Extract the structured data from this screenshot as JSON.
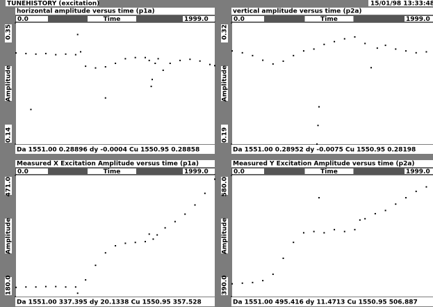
{
  "header": {
    "title": "TUNEHISTORY (excitation)",
    "timestamp": "15/01/98 13:33:48"
  },
  "chart_data": [
    {
      "type": "scatter",
      "title": "horizontal amplitude versus time (p1a)",
      "xlabel": "Time",
      "ylabel": "Amplitude",
      "xlim": [
        0,
        1999
      ],
      "xticks": [
        {
          "value": 0,
          "label": "0.0"
        },
        {
          "value": 1999,
          "label": "1999.0"
        }
      ],
      "ylim": [
        0.14,
        0.35
      ],
      "yticks": [
        0.35,
        0.14
      ],
      "color": "#000000",
      "status": "Da 1551.00 0.28896 dy -0.0004 Cu 1550.95 0.28858",
      "x": [
        0,
        100,
        200,
        300,
        400,
        500,
        600,
        620,
        650,
        700,
        800,
        900,
        1000,
        1100,
        1200,
        1300,
        1340,
        1370,
        1400,
        1430,
        1480,
        1550,
        1650,
        1750,
        1850,
        1950,
        1999,
        150,
        900,
        1360
      ],
      "y": [
        0.298,
        0.297,
        0.296,
        0.297,
        0.295,
        0.296,
        0.295,
        0.33,
        0.3,
        0.275,
        0.272,
        0.274,
        0.28,
        0.288,
        0.29,
        0.29,
        0.285,
        0.252,
        0.28,
        0.288,
        0.268,
        0.28,
        0.285,
        0.287,
        0.284,
        0.278,
        0.276,
        0.2,
        0.22,
        0.24
      ]
    },
    {
      "type": "scatter",
      "title": "vertical amplitude versus time (p2a)",
      "xlabel": "Time",
      "ylabel": "Amplitude",
      "xlim": [
        0,
        1999
      ],
      "xticks": [
        {
          "value": 0,
          "label": "0.0"
        },
        {
          "value": 1999,
          "label": "1999.0"
        }
      ],
      "ylim": [
        0.19,
        0.32
      ],
      "yticks": [
        0.32,
        0.19
      ],
      "color": "#000000",
      "status": "Da 1551.00 0.28952 dy -0.0075 Cu 1550.95 0.28198",
      "x": [
        0,
        100,
        200,
        300,
        400,
        500,
        600,
        700,
        800,
        830,
        900,
        1000,
        1100,
        1200,
        1300,
        1360,
        1420,
        1500,
        1600,
        1700,
        1800,
        1900,
        1999,
        840,
        850
      ],
      "y": [
        0.29,
        0.288,
        0.285,
        0.28,
        0.276,
        0.279,
        0.285,
        0.29,
        0.292,
        0.19,
        0.297,
        0.3,
        0.303,
        0.305,
        0.298,
        0.272,
        0.293,
        0.296,
        0.292,
        0.29,
        0.288,
        0.289,
        0.29,
        0.21,
        0.23
      ]
    },
    {
      "type": "scatter",
      "title": "Measured X Excitation Amplitude versus time (p1a)",
      "xlabel": "Time",
      "ylabel": "Amplitude",
      "xlim": [
        0,
        1999
      ],
      "xticks": [
        {
          "value": 0,
          "label": "0.0"
        },
        {
          "value": 1999,
          "label": "1999.0"
        }
      ],
      "ylim": [
        180,
        471
      ],
      "yticks": [
        {
          "value": 471,
          "label": "471.0"
        },
        {
          "value": 180,
          "label": "180.0"
        }
      ],
      "color": "#000000",
      "status": "Da 1551.00 337.395 dy 20.1338 Cu 1550.95 357.528",
      "x": [
        0,
        100,
        200,
        300,
        400,
        500,
        600,
        620,
        700,
        800,
        900,
        1000,
        1100,
        1200,
        1300,
        1340,
        1380,
        1420,
        1500,
        1600,
        1700,
        1800,
        1900,
        1999
      ],
      "y": [
        202,
        203,
        203,
        204,
        204,
        203,
        203,
        188,
        220,
        255,
        285,
        302,
        308,
        310,
        312,
        330,
        318,
        328,
        345,
        360,
        378,
        400,
        428,
        462
      ]
    },
    {
      "type": "scatter",
      "title": "Measured Y Excitation Amplitude versus time (p2a)",
      "xlabel": "Time",
      "ylabel": "Amplitude",
      "xlim": [
        0,
        1999
      ],
      "xticks": [
        {
          "value": 0,
          "label": "0.0"
        },
        {
          "value": 1999,
          "label": "1999.0"
        }
      ],
      "ylim": [
        390,
        580
      ],
      "yticks": [
        {
          "value": 580,
          "label": "580.0"
        },
        {
          "value": 390,
          "label": "390.0"
        }
      ],
      "color": "#000000",
      "status": "Da 1551.00 495.416 dy 11.4713 Cu 1550.95 506.887",
      "x": [
        0,
        100,
        200,
        300,
        400,
        500,
        600,
        700,
        800,
        850,
        900,
        1000,
        1100,
        1200,
        1250,
        1300,
        1400,
        1500,
        1600,
        1700,
        1800,
        1900,
        1999
      ],
      "y": [
        410,
        411,
        412,
        415,
        425,
        450,
        475,
        490,
        492,
        545,
        490,
        495,
        492,
        495,
        510,
        512,
        520,
        525,
        535,
        545,
        555,
        562,
        570
      ]
    }
  ]
}
